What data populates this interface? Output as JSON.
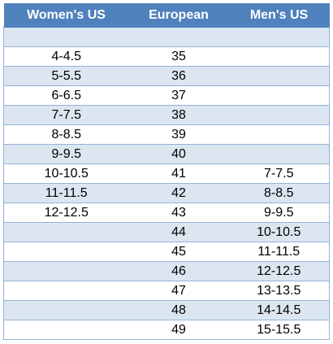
{
  "table": {
    "headers": [
      "Women's US",
      "European",
      "Men's US"
    ],
    "rows": [
      [
        "",
        "",
        ""
      ],
      [
        "4-4.5",
        "35",
        ""
      ],
      [
        "5-5.5",
        "36",
        ""
      ],
      [
        "6-6.5",
        "37",
        ""
      ],
      [
        "7-7.5",
        "38",
        ""
      ],
      [
        "8-8.5",
        "39",
        ""
      ],
      [
        "9-9.5",
        "40",
        ""
      ],
      [
        "10-10.5",
        "41",
        "7-7.5"
      ],
      [
        "11-11.5",
        "42",
        "8-8.5"
      ],
      [
        "12-12.5",
        "43",
        "9-9.5"
      ],
      [
        "",
        "44",
        "10-10.5"
      ],
      [
        "",
        "45",
        "11-11.5"
      ],
      [
        "",
        "46",
        "12-12.5"
      ],
      [
        "",
        "47",
        "13-13.5"
      ],
      [
        "",
        "48",
        "14-14.5"
      ],
      [
        "",
        "49",
        "15-15.5"
      ]
    ]
  },
  "colors": {
    "header_bg": "#4f81bd",
    "header_text": "#ffffff",
    "band_row": "#dce6f1",
    "plain_row": "#ffffff",
    "grid_line": "#95b3d7"
  }
}
